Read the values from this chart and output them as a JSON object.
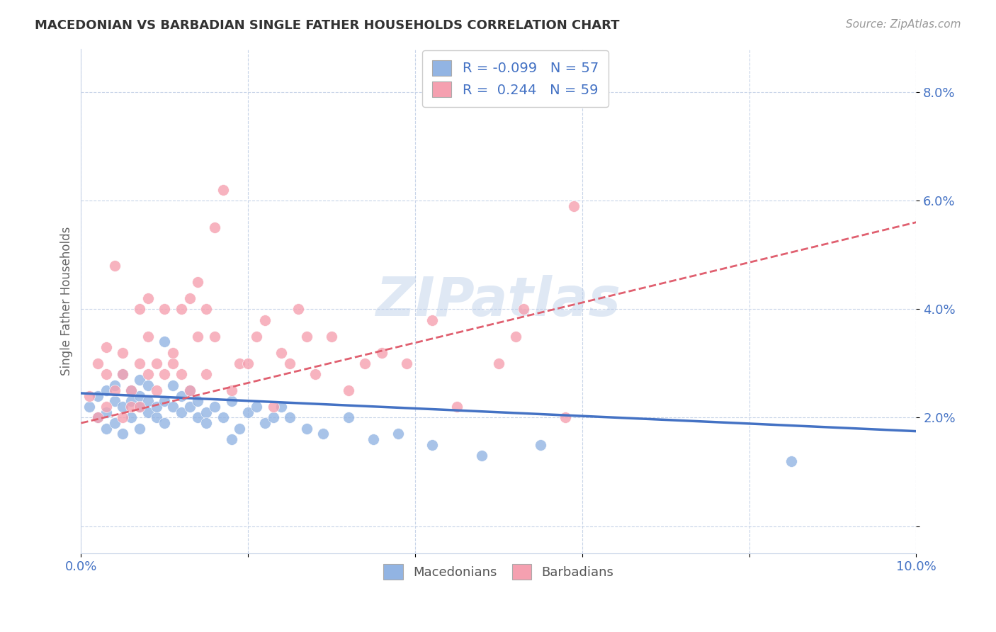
{
  "title": "MACEDONIAN VS BARBADIAN SINGLE FATHER HOUSEHOLDS CORRELATION CHART",
  "source": "Source: ZipAtlas.com",
  "ylabel": "Single Father Households",
  "xlim": [
    0.0,
    0.1
  ],
  "ylim": [
    -0.005,
    0.088
  ],
  "yticks": [
    0.0,
    0.02,
    0.04,
    0.06,
    0.08
  ],
  "ytick_labels": [
    "",
    "2.0%",
    "4.0%",
    "6.0%",
    "8.0%"
  ],
  "xticks": [
    0.0,
    0.02,
    0.04,
    0.06,
    0.08,
    0.1
  ],
  "xtick_labels": [
    "0.0%",
    "",
    "",
    "",
    "",
    "10.0%"
  ],
  "legend_mac": "R = -0.099   N = 57",
  "legend_bar": "R =  0.244   N = 59",
  "macedonian_color": "#92b4e3",
  "barbadian_color": "#f5a0b0",
  "macedonian_line_color": "#4472c4",
  "barbadian_line_color": "#e06070",
  "background_color": "#ffffff",
  "grid_color": "#c8d4e8",
  "watermark": "ZIPatlas",
  "macedonian_x": [
    0.001,
    0.002,
    0.002,
    0.003,
    0.003,
    0.003,
    0.004,
    0.004,
    0.004,
    0.005,
    0.005,
    0.005,
    0.006,
    0.006,
    0.006,
    0.007,
    0.007,
    0.007,
    0.007,
    0.008,
    0.008,
    0.008,
    0.009,
    0.009,
    0.01,
    0.01,
    0.01,
    0.011,
    0.011,
    0.012,
    0.012,
    0.013,
    0.013,
    0.014,
    0.014,
    0.015,
    0.015,
    0.016,
    0.017,
    0.018,
    0.018,
    0.019,
    0.02,
    0.021,
    0.022,
    0.023,
    0.024,
    0.025,
    0.027,
    0.029,
    0.032,
    0.035,
    0.038,
    0.042,
    0.048,
    0.055,
    0.085
  ],
  "macedonian_y": [
    0.022,
    0.024,
    0.02,
    0.025,
    0.021,
    0.018,
    0.023,
    0.026,
    0.019,
    0.022,
    0.028,
    0.017,
    0.023,
    0.02,
    0.025,
    0.022,
    0.018,
    0.024,
    0.027,
    0.021,
    0.023,
    0.026,
    0.02,
    0.022,
    0.019,
    0.023,
    0.034,
    0.022,
    0.026,
    0.021,
    0.024,
    0.022,
    0.025,
    0.02,
    0.023,
    0.021,
    0.019,
    0.022,
    0.02,
    0.023,
    0.016,
    0.018,
    0.021,
    0.022,
    0.019,
    0.02,
    0.022,
    0.02,
    0.018,
    0.017,
    0.02,
    0.016,
    0.017,
    0.015,
    0.013,
    0.015,
    0.012
  ],
  "barbadian_x": [
    0.001,
    0.002,
    0.002,
    0.003,
    0.003,
    0.003,
    0.004,
    0.004,
    0.005,
    0.005,
    0.005,
    0.006,
    0.006,
    0.007,
    0.007,
    0.007,
    0.008,
    0.008,
    0.008,
    0.009,
    0.009,
    0.01,
    0.01,
    0.011,
    0.011,
    0.012,
    0.012,
    0.013,
    0.013,
    0.014,
    0.014,
    0.015,
    0.015,
    0.016,
    0.016,
    0.017,
    0.018,
    0.019,
    0.02,
    0.021,
    0.022,
    0.023,
    0.024,
    0.025,
    0.026,
    0.027,
    0.028,
    0.03,
    0.032,
    0.034,
    0.036,
    0.039,
    0.042,
    0.045,
    0.05,
    0.052,
    0.053,
    0.058,
    0.059
  ],
  "barbadian_y": [
    0.024,
    0.02,
    0.03,
    0.022,
    0.028,
    0.033,
    0.025,
    0.048,
    0.02,
    0.028,
    0.032,
    0.022,
    0.025,
    0.03,
    0.04,
    0.022,
    0.028,
    0.035,
    0.042,
    0.025,
    0.03,
    0.028,
    0.04,
    0.03,
    0.032,
    0.028,
    0.04,
    0.042,
    0.025,
    0.035,
    0.045,
    0.028,
    0.04,
    0.035,
    0.055,
    0.062,
    0.025,
    0.03,
    0.03,
    0.035,
    0.038,
    0.022,
    0.032,
    0.03,
    0.04,
    0.035,
    0.028,
    0.035,
    0.025,
    0.03,
    0.032,
    0.03,
    0.038,
    0.022,
    0.03,
    0.035,
    0.04,
    0.02,
    0.059
  ],
  "mac_line_x0": 0.0,
  "mac_line_x1": 0.1,
  "mac_line_y0": 0.0245,
  "mac_line_y1": 0.0175,
  "bar_line_x0": 0.0,
  "bar_line_x1": 0.1,
  "bar_line_y0": 0.019,
  "bar_line_y1": 0.056
}
